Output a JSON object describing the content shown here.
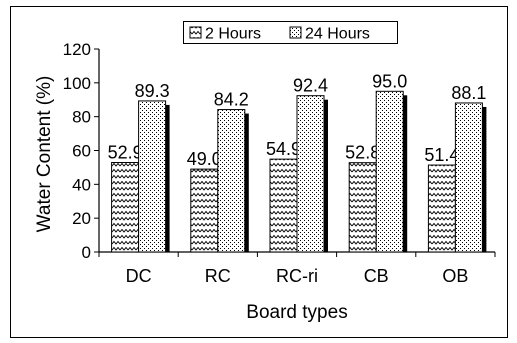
{
  "chart_data": {
    "type": "bar",
    "xlabel": "Board types",
    "ylabel": "Water Content (%)",
    "ylim": [
      0,
      120
    ],
    "yticks": [
      0,
      20,
      40,
      60,
      80,
      100,
      120
    ],
    "categories": [
      "DC",
      "RC",
      "RC-ri",
      "CB",
      "OB"
    ],
    "series": [
      {
        "name": "2 Hours",
        "values": [
          52.9,
          49.0,
          54.9,
          52.8,
          51.4
        ],
        "labels": [
          "52.9",
          "49.0",
          "54.9",
          "52.8",
          "51.4"
        ],
        "pattern": "zigzag"
      },
      {
        "name": "24 Hours",
        "values": [
          89.3,
          84.2,
          92.4,
          95.0,
          88.1
        ],
        "labels": [
          "89.3",
          "84.2",
          "92.4",
          "95.0",
          "88.1"
        ],
        "pattern": "dotted"
      }
    ],
    "grid": false,
    "legend_position": "top",
    "bar_shadow": true
  }
}
